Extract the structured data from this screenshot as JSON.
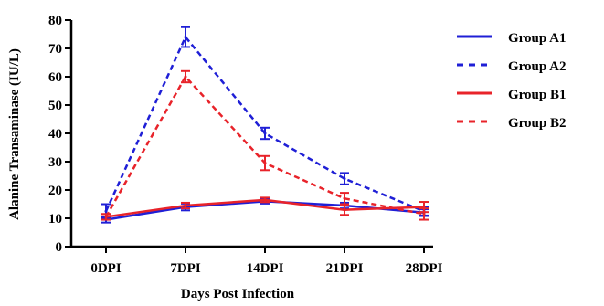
{
  "chart_data": {
    "type": "line",
    "title": "",
    "xlabel": "Days Post Infection",
    "ylabel": "Alanine Transaminase (IU/L)",
    "categories": [
      "0DPI",
      "7DPI",
      "14DPI",
      "21DPI",
      "28DPI"
    ],
    "ylim": [
      0,
      80
    ],
    "yticks": [
      0,
      10,
      20,
      30,
      40,
      50,
      60,
      70,
      80
    ],
    "grid": false,
    "legend_position": "right",
    "series": [
      {
        "name": "Group A1",
        "color": "#1f1fd6",
        "style": "solid",
        "values": [
          9.5,
          14.0,
          16.0,
          14.5,
          12.0
        ],
        "errors": [
          1.0,
          1.2,
          0.8,
          1.0,
          1.2
        ]
      },
      {
        "name": "Group A2",
        "color": "#1f1fd6",
        "style": "dashed",
        "values": [
          12.5,
          74.0,
          40.0,
          24.0,
          12.5
        ],
        "errors": [
          2.5,
          3.5,
          2.0,
          2.0,
          1.5
        ]
      },
      {
        "name": "Group B1",
        "color": "#e8232a",
        "style": "solid",
        "values": [
          10.5,
          14.5,
          16.5,
          13.0,
          14.0
        ],
        "errors": [
          1.0,
          1.0,
          0.8,
          1.8,
          1.8
        ]
      },
      {
        "name": "Group B2",
        "color": "#e8232a",
        "style": "dashed",
        "values": [
          10.5,
          60.0,
          29.5,
          17.0,
          11.5
        ],
        "errors": [
          1.0,
          2.0,
          2.5,
          2.0,
          2.0
        ]
      }
    ]
  }
}
